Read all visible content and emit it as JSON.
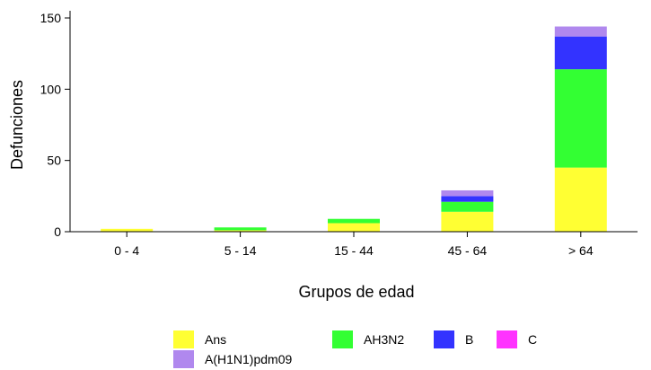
{
  "chart_data": {
    "type": "bar",
    "stacked": true,
    "categories": [
      "0 - 4",
      "5 - 14",
      "15 - 44",
      "45 - 64",
      "> 64"
    ],
    "series": [
      {
        "name": "Ans",
        "color": "#ffff33",
        "values": [
          2,
          1,
          6,
          14,
          45
        ]
      },
      {
        "name": "AH3N2",
        "color": "#33ff33",
        "values": [
          0,
          2,
          3,
          7,
          69
        ]
      },
      {
        "name": "B",
        "color": "#3333ff",
        "values": [
          0,
          0,
          0,
          4,
          23
        ]
      },
      {
        "name": "C",
        "color": "#ff33ff",
        "values": [
          0,
          0,
          0,
          0,
          0
        ]
      },
      {
        "name": "A(H1N1)pdm09",
        "color": "#b088ee",
        "values": [
          0,
          0,
          0,
          4,
          7
        ]
      }
    ],
    "xlabel": "Grupos de edad",
    "ylabel": "Defunciones",
    "ylim": [
      0,
      150
    ],
    "yticks": [
      0,
      50,
      100,
      150
    ],
    "grid": false,
    "legend_position": "bottom"
  }
}
